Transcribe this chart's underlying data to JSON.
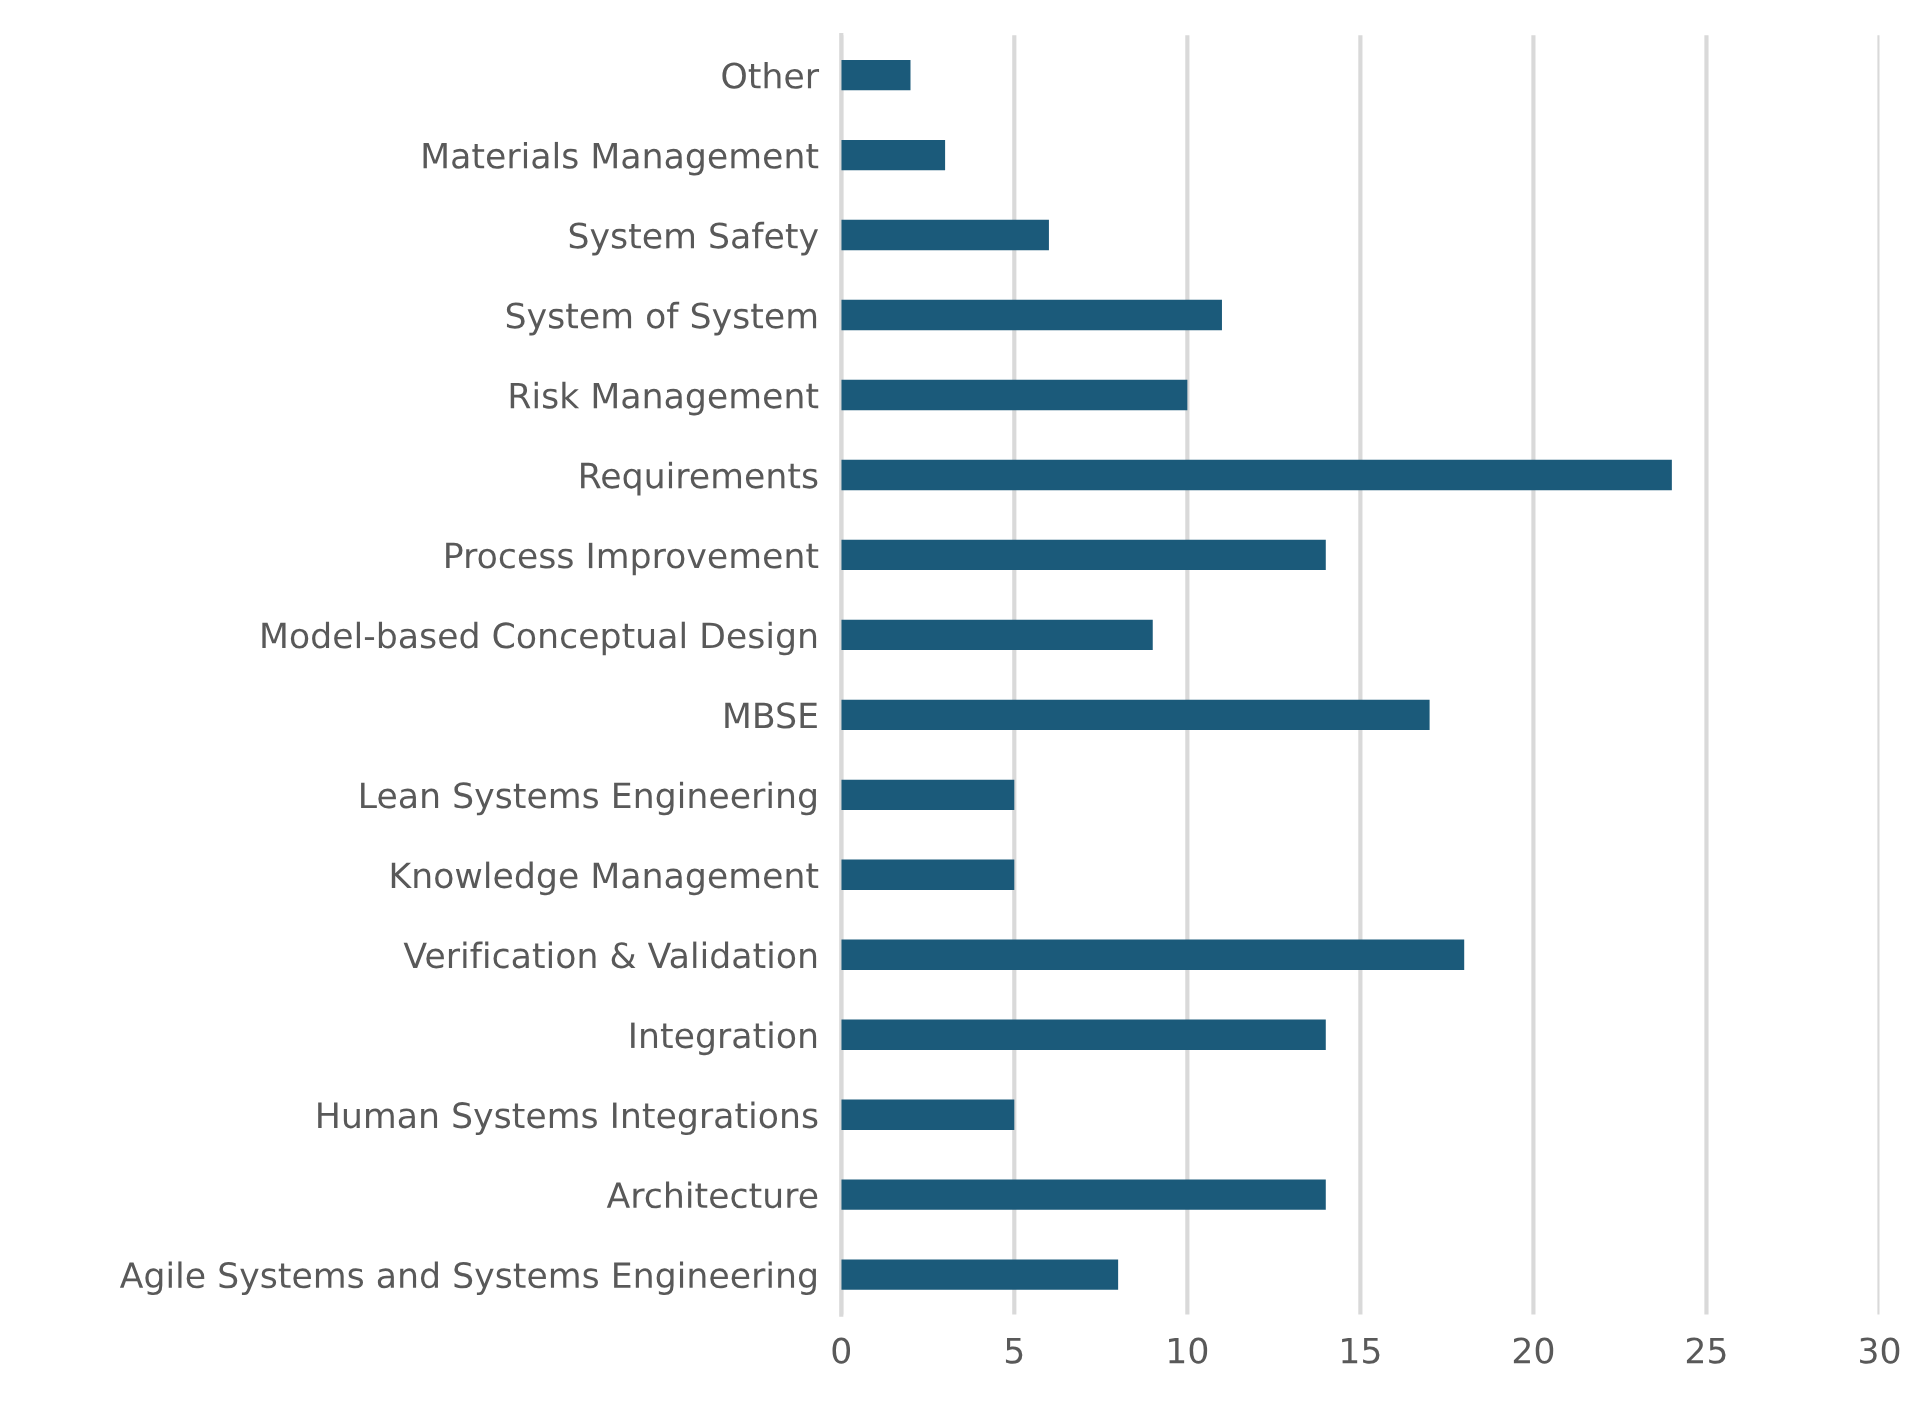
{
  "chart_data": {
    "type": "bar",
    "orientation": "horizontal",
    "categories": [
      "Other",
      "Materials Management",
      "System Safety",
      "System of System",
      "Risk Management",
      "Requirements",
      "Process Improvement",
      "Model-based Conceptual Design",
      "MBSE",
      "Lean Systems Engineering",
      "Knowledge Management",
      "Verification & Validation",
      "Integration",
      "Human Systems Integrations",
      "Architecture",
      "Agile Systems and Systems Engineering"
    ],
    "values": [
      2,
      3,
      6,
      11,
      10,
      24,
      14,
      9,
      17,
      5,
      5,
      18,
      14,
      5,
      14,
      8
    ],
    "color": "#1b5a7a",
    "xlim": [
      0,
      30
    ],
    "xticks": [
      0,
      5,
      10,
      15,
      20,
      25,
      30
    ],
    "grid": "x",
    "legend": false
  }
}
